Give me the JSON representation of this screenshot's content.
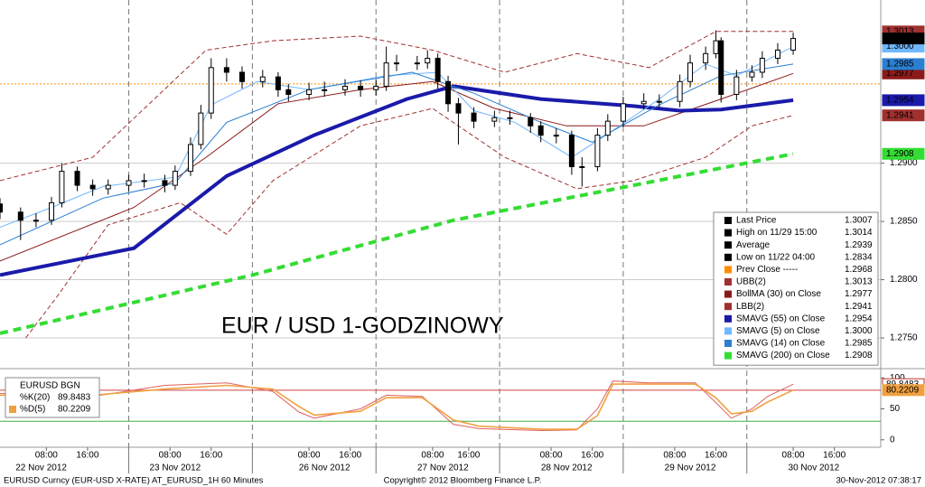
{
  "chart_data": [
    {
      "type": "candlestick",
      "title": "EUR / USD 1-GODZINOWY",
      "title_color": "#d01010",
      "x": [
        0,
        4,
        7,
        10,
        12,
        15,
        18,
        21,
        25,
        28,
        32,
        34,
        37,
        39,
        41,
        44,
        47,
        51,
        54,
        56,
        60,
        63,
        67,
        70,
        73,
        75,
        77,
        81,
        83,
        85,
        87,
        89,
        92,
        96,
        99,
        103,
        105,
        108,
        111,
        113,
        116,
        118,
        121,
        125,
        128,
        132,
        134,
        137,
        139,
        140,
        143,
        146,
        148,
        151,
        154
      ],
      "open": [
        1.2865,
        1.2858,
        1.2851,
        1.2851,
        1.2866,
        1.2893,
        1.2881,
        1.2878,
        1.2881,
        1.2885,
        1.2885,
        1.2881,
        1.2893,
        1.2916,
        1.2943,
        1.2982,
        1.2978,
        1.297,
        1.2974,
        1.2963,
        1.2959,
        1.2963,
        1.2963,
        1.2966,
        1.2963,
        1.2966,
        1.2986,
        1.2986,
        1.2986,
        1.299,
        1.297,
        1.2951,
        1.2943,
        1.2936,
        1.2939,
        1.2939,
        1.2932,
        1.2924,
        1.2924,
        1.2897,
        1.2897,
        1.2924,
        1.2936,
        1.2951,
        1.2953,
        1.2953,
        1.297,
        1.2986,
        1.2994,
        1.3005,
        1.2959,
        1.2974,
        1.2978,
        1.299,
        1.2997
      ],
      "high": [
        1.287,
        1.2862,
        1.2857,
        1.2871,
        1.29,
        1.2897,
        1.2886,
        1.2886,
        1.289,
        1.2891,
        1.289,
        1.2898,
        1.2922,
        1.295,
        1.299,
        1.299,
        1.2983,
        1.298,
        1.2978,
        1.2968,
        1.2969,
        1.297,
        1.2972,
        1.2971,
        1.2972,
        1.3,
        1.2993,
        1.2992,
        1.2997,
        1.2994,
        1.2975,
        1.2956,
        1.2948,
        1.2945,
        1.2945,
        1.2943,
        1.2936,
        1.293,
        1.2928,
        1.2905,
        1.293,
        1.2942,
        1.2957,
        1.296,
        1.2959,
        1.2976,
        1.2993,
        1.3,
        1.3014,
        1.3008,
        1.298,
        1.2984,
        1.2996,
        1.3003,
        1.3012
      ],
      "low": [
        1.2852,
        1.2834,
        1.2845,
        1.2847,
        1.2862,
        1.2876,
        1.2872,
        1.2873,
        1.2876,
        1.2879,
        1.2875,
        1.2877,
        1.2889,
        1.2912,
        1.2938,
        1.297,
        1.2964,
        1.2965,
        1.2957,
        1.2953,
        1.2954,
        1.2957,
        1.2958,
        1.2957,
        1.2958,
        1.2962,
        1.2979,
        1.298,
        1.2981,
        1.2964,
        1.2944,
        1.2916,
        1.293,
        1.2931,
        1.2933,
        1.2926,
        1.2918,
        1.2917,
        1.289,
        1.288,
        1.2893,
        1.2919,
        1.2931,
        1.2946,
        1.2947,
        1.2948,
        1.2965,
        1.298,
        1.299,
        1.2952,
        1.2954,
        1.297,
        1.2973,
        1.2985,
        1.2993
      ],
      "close": [
        1.2858,
        1.2851,
        1.2851,
        1.2866,
        1.2893,
        1.2881,
        1.2878,
        1.2881,
        1.2885,
        1.2885,
        1.2881,
        1.2893,
        1.2916,
        1.2943,
        1.2982,
        1.2978,
        1.297,
        1.2974,
        1.2963,
        1.2959,
        1.2963,
        1.2963,
        1.2966,
        1.2963,
        1.2966,
        1.2986,
        1.2986,
        1.2986,
        1.299,
        1.297,
        1.2951,
        1.2943,
        1.2936,
        1.2939,
        1.2939,
        1.2932,
        1.2924,
        1.2924,
        1.2897,
        1.2897,
        1.2924,
        1.2936,
        1.2951,
        1.2953,
        1.2953,
        1.297,
        1.2986,
        1.2994,
        1.3005,
        1.2959,
        1.2974,
        1.2978,
        1.299,
        1.2997,
        1.3007
      ],
      "color": "#000000",
      "stats": [
        {
          "label": "Last Price",
          "value": 1.3007
        },
        {
          "label": "High on 11/29 15:00",
          "value": 1.3014
        },
        {
          "label": "Average",
          "value": 1.2939
        },
        {
          "label": "Low on 11/22 04:00",
          "value": 1.2834
        }
      ],
      "prev_close": {
        "label": "Prev Close -----",
        "value": 1.2968,
        "color": "#ff8c00"
      },
      "overlays": [
        {
          "name": "UBB(2)",
          "color": "#a0302f",
          "dash": true,
          "width": 1,
          "x": [
            0,
            18,
            40,
            53,
            70,
            84,
            98,
            112,
            126,
            139,
            154
          ],
          "values": [
            1.2885,
            1.2905,
            1.2997,
            1.3005,
            1.3009,
            1.2997,
            1.2978,
            1.2994,
            1.2982,
            1.3013,
            1.3013
          ],
          "last_label": "1.3013"
        },
        {
          "name": "BollMA (30) on Close",
          "color": "#8b1a1a",
          "dash": false,
          "width": 1,
          "x": [
            0,
            26,
            40,
            54,
            70,
            84,
            96,
            110,
            125,
            140,
            154
          ],
          "values": [
            1.2816,
            1.2862,
            1.2905,
            1.2951,
            1.2963,
            1.297,
            1.2947,
            1.2932,
            1.2932,
            1.2955,
            1.2977
          ],
          "last_label": "1.2977"
        },
        {
          "name": "LBB(2)",
          "color": "#a0302f",
          "dash": true,
          "width": 1,
          "x": [
            5,
            11,
            21,
            35,
            44,
            53,
            70,
            84,
            98,
            112,
            123,
            137,
            146,
            154
          ],
          "values": [
            1.275,
            1.2785,
            1.2847,
            1.2866,
            1.2839,
            1.2885,
            1.2932,
            1.2947,
            1.2905,
            1.2878,
            1.2885,
            1.2905,
            1.2932,
            1.2941
          ],
          "last_label": "1.2941"
        },
        {
          "name": "SMAVG (55) on Close",
          "color": "#1a1aaa",
          "dash": false,
          "width": 4,
          "x": [
            0,
            26,
            44,
            61,
            79,
            88,
            105,
            123,
            132,
            140,
            154
          ],
          "values": [
            1.2804,
            1.2827,
            1.2889,
            1.2924,
            1.2955,
            1.2966,
            1.2955,
            1.2949,
            1.2945,
            1.2946,
            1.2954
          ],
          "last_label": "1.2954"
        },
        {
          "name": "SMAVG (5) on Close",
          "color": "#6fb7ff",
          "dash": false,
          "width": 1,
          "x": [
            0,
            10,
            20,
            34,
            41,
            50,
            60,
            75,
            85,
            92,
            100,
            111,
            118,
            128,
            137,
            143,
            154
          ],
          "values": [
            1.2845,
            1.2862,
            1.288,
            1.2888,
            1.295,
            1.297,
            1.2963,
            1.2975,
            1.2978,
            1.2945,
            1.2935,
            1.2905,
            1.2925,
            1.2955,
            1.2985,
            1.2975,
            1.3
          ],
          "last_label": "1.3000"
        },
        {
          "name": "SMAVG (14) on Close",
          "color": "#2b7fd0",
          "dash": false,
          "width": 1,
          "x": [
            0,
            20,
            34,
            44,
            60,
            80,
            92,
            105,
            115,
            128,
            140,
            154
          ],
          "values": [
            1.283,
            1.287,
            1.2883,
            1.2935,
            1.2963,
            1.2978,
            1.296,
            1.2935,
            1.2918,
            1.295,
            1.2975,
            1.2985
          ],
          "last_label": "1.2985"
        },
        {
          "name": "SMAVG (200) on Close",
          "color": "#33dd33",
          "dash": true,
          "width": 4,
          "x": [
            0,
            49,
            88,
            123,
            154
          ],
          "values": [
            1.2754,
            1.2804,
            1.2851,
            1.2881,
            1.2908
          ],
          "last_label": "1.2908"
        }
      ],
      "xlim": [
        0,
        171
      ],
      "ylim": [
        1.2726,
        1.304
      ],
      "yticks": [
        {
          "value": 1.275,
          "label": "1.2750"
        },
        {
          "value": 1.28,
          "label": "1.2800"
        },
        {
          "value": 1.285,
          "label": "1.2850"
        },
        {
          "value": 1.29,
          "label": "1.2900"
        }
      ],
      "xticks": [
        {
          "value": 9,
          "label": "08:00"
        },
        {
          "value": 17,
          "label": "16:00"
        },
        {
          "value": 33,
          "label": "08:00"
        },
        {
          "value": 41,
          "label": "16:00"
        },
        {
          "value": 60,
          "label": "08:00"
        },
        {
          "value": 68,
          "label": "16:00"
        },
        {
          "value": 84,
          "label": "08:00"
        },
        {
          "value": 91,
          "label": "16:00"
        },
        {
          "value": 107,
          "label": "08:00"
        },
        {
          "value": 115,
          "label": "16:00"
        },
        {
          "value": 131,
          "label": "08:00"
        },
        {
          "value": 139,
          "label": "16:00"
        },
        {
          "value": 154,
          "label": "08:00"
        },
        {
          "value": 162,
          "label": "16:00"
        }
      ],
      "date_labels": [
        {
          "value": 8,
          "label": "22 Nov 2012"
        },
        {
          "value": 34,
          "label": "23 Nov 2012"
        },
        {
          "value": 63,
          "label": "26 Nov 2012"
        },
        {
          "value": 86,
          "label": "27 Nov 2012"
        },
        {
          "value": 110,
          "label": "28 Nov 2012"
        },
        {
          "value": 134,
          "label": "29 Nov 2012"
        },
        {
          "value": 158,
          "label": "30 Nov 2012"
        }
      ],
      "day_breaks": [
        25,
        49,
        73,
        97,
        121,
        145
      ],
      "grid": true
    },
    {
      "type": "line",
      "title": "EURUSD BGN",
      "x": [
        0,
        18,
        32,
        44,
        53,
        58,
        61,
        70,
        75,
        82,
        88,
        93,
        105,
        112,
        116,
        119,
        126,
        135,
        139,
        142,
        146,
        149,
        154
      ],
      "series": [
        {
          "name": "%K(20)",
          "color": "#e06060",
          "values": [
            75,
            70,
            88,
            92,
            78,
            45,
            35,
            50,
            72,
            70,
            25,
            18,
            15,
            16,
            50,
            95,
            92,
            92,
            60,
            35,
            50,
            70,
            89.8483
          ]
        },
        {
          "name": "%D(5)",
          "color": "#f0a040",
          "values": [
            72,
            72,
            82,
            88,
            82,
            54,
            40,
            46,
            68,
            68,
            32,
            22,
            17,
            17,
            39,
            90,
            90,
            90,
            68,
            42,
            46,
            61,
            80.2209
          ]
        }
      ],
      "levels": [
        {
          "value": 80,
          "color": "#d04040"
        },
        {
          "value": 30,
          "color": "#40b040"
        }
      ],
      "ylim": [
        -12,
        112
      ],
      "yticks": [
        0,
        50,
        100
      ]
    }
  ],
  "footer": {
    "left": "EURUSD Curncy (EUR-USD X-RATE) AT_EURUSD_1H 60 Minutes",
    "center": "Copyright© 2012 Bloomberg Finance L.P.",
    "right": "30-Nov-2012 07:38:17"
  }
}
